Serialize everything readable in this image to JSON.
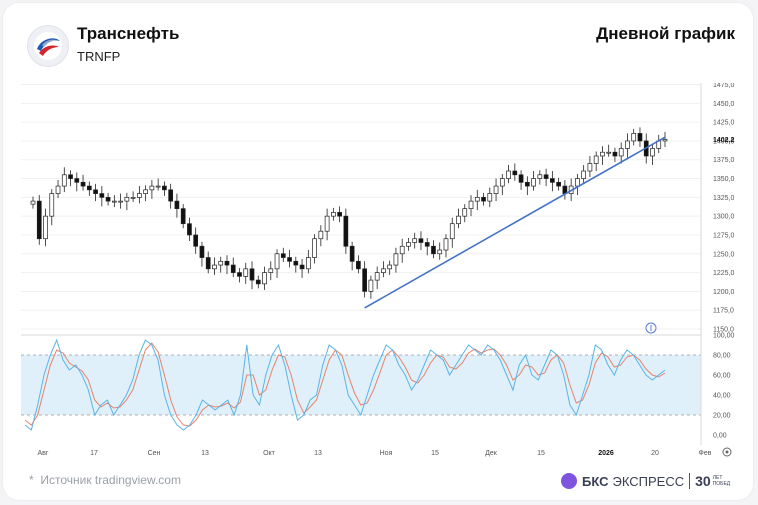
{
  "header": {
    "title": "Транснефть",
    "ticker": "TRNFP",
    "chart_type_label": "Дневной график"
  },
  "footer": {
    "source": "Источник tradingview.com",
    "brand_name": "БКС",
    "brand_name2": "ЭКСПРЕСС",
    "anniversary": "30",
    "anniversary_line1": "ЛЕТ",
    "anniversary_line2": "ПОБЕД"
  },
  "colors": {
    "up": "#222222",
    "down": "#111111",
    "trendline": "#4472c4",
    "stoch_k": "#5ab4e6",
    "stoch_d": "#e8826a",
    "stoch_band": "#dff0fb"
  },
  "chart_data": [
    {
      "type": "candlestick",
      "ylim": [
        1150,
        1485
      ],
      "y_ticks": [
        "1475,0",
        "1450,0",
        "1425,0",
        "1400,0",
        "1375,0",
        "1350,0",
        "1325,0",
        "1300,0",
        "1275,0",
        "1250,0",
        "1225,0",
        "1200,0",
        "1175,0",
        "1150,0"
      ],
      "last_price": "1402,2",
      "x_ticks": [
        "Авг",
        "17",
        "Сен",
        "13",
        "Окт",
        "13",
        "Ноя",
        "15",
        "Дек",
        "15",
        "2026",
        "20",
        "Фев"
      ],
      "close_path": [
        1320,
        1270,
        1300,
        1330,
        1340,
        1355,
        1350,
        1345,
        1340,
        1335,
        1330,
        1325,
        1320,
        1320,
        1320,
        1325,
        1325,
        1330,
        1335,
        1340,
        1340,
        1335,
        1320,
        1310,
        1290,
        1275,
        1260,
        1245,
        1230,
        1235,
        1240,
        1235,
        1225,
        1220,
        1230,
        1215,
        1210,
        1225,
        1230,
        1250,
        1245,
        1240,
        1235,
        1230,
        1245,
        1270,
        1280,
        1300,
        1305,
        1300,
        1260,
        1240,
        1230,
        1200,
        1215,
        1225,
        1230,
        1235,
        1250,
        1260,
        1265,
        1270,
        1265,
        1260,
        1250,
        1255,
        1270,
        1290,
        1300,
        1310,
        1320,
        1325,
        1320,
        1330,
        1340,
        1350,
        1360,
        1355,
        1345,
        1340,
        1350,
        1355,
        1350,
        1345,
        1340,
        1330,
        1340,
        1350,
        1360,
        1370,
        1380,
        1385,
        1385,
        1380,
        1390,
        1400,
        1410,
        1400,
        1380,
        1390,
        1400,
        1402
      ],
      "trendline": [
        [
          53,
          1178
        ],
        [
          101,
          1405
        ]
      ]
    },
    {
      "type": "line",
      "name_hint": "stochastic",
      "ylim": [
        -10,
        100
      ],
      "y_ticks": [
        "100,00",
        "80,00",
        "60,00",
        "40,00",
        "20,00",
        "0,00"
      ],
      "band": [
        20,
        80
      ],
      "k": [
        10,
        5,
        30,
        60,
        80,
        95,
        75,
        65,
        70,
        60,
        45,
        20,
        30,
        35,
        20,
        30,
        40,
        55,
        80,
        95,
        90,
        75,
        40,
        20,
        10,
        5,
        10,
        20,
        35,
        30,
        25,
        30,
        35,
        20,
        40,
        90,
        40,
        30,
        60,
        80,
        90,
        70,
        40,
        15,
        20,
        35,
        40,
        70,
        90,
        85,
        70,
        40,
        30,
        20,
        40,
        60,
        75,
        90,
        85,
        70,
        60,
        45,
        55,
        70,
        85,
        80,
        75,
        60,
        70,
        80,
        90,
        85,
        80,
        90,
        85,
        75,
        60,
        45,
        70,
        80,
        60,
        55,
        70,
        85,
        80,
        60,
        30,
        20,
        40,
        60,
        90,
        85,
        70,
        60,
        75,
        85,
        80,
        70,
        60,
        55,
        60,
        65
      ],
      "d": [
        15,
        10,
        20,
        45,
        70,
        85,
        82,
        72,
        68,
        64,
        55,
        35,
        28,
        32,
        27,
        28,
        35,
        45,
        65,
        85,
        92,
        83,
        60,
        35,
        18,
        10,
        9,
        15,
        25,
        30,
        28,
        29,
        32,
        27,
        33,
        60,
        60,
        40,
        45,
        65,
        80,
        78,
        60,
        35,
        22,
        28,
        35,
        55,
        75,
        85,
        80,
        60,
        42,
        30,
        32,
        45,
        62,
        80,
        85,
        78,
        68,
        55,
        52,
        60,
        72,
        80,
        78,
        68,
        66,
        72,
        82,
        86,
        82,
        85,
        86,
        80,
        70,
        55,
        60,
        70,
        68,
        60,
        62,
        75,
        80,
        72,
        50,
        32,
        35,
        50,
        72,
        82,
        78,
        68,
        70,
        78,
        80,
        75,
        66,
        60,
        58,
        62
      ]
    }
  ]
}
